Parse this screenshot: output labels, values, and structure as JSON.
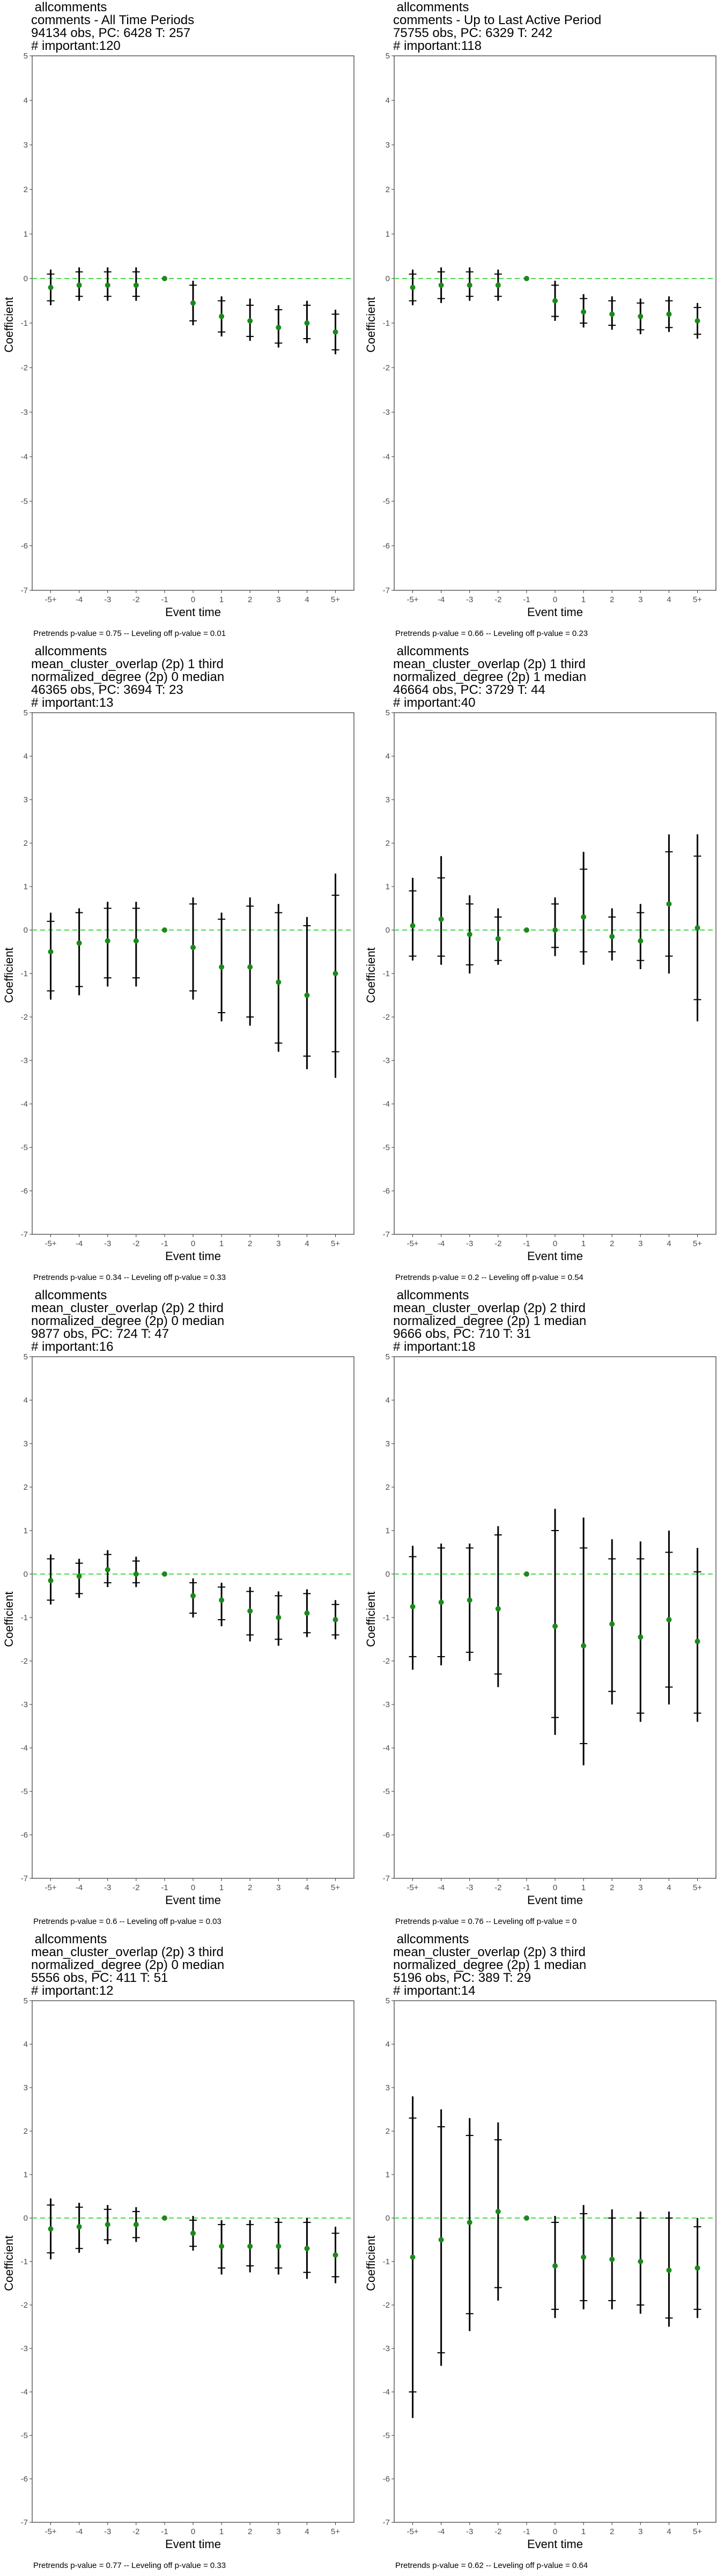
{
  "chart_data": [
    {
      "type": "errorbar",
      "title_lines": [
        "allcomments",
        "comments - All Time Periods",
        "94134 obs, PC: 6428 T: 257",
        "# important:120"
      ],
      "xlabel": "Event time",
      "ylabel": "Coefficient",
      "ylim": [
        -7,
        5
      ],
      "yticks": [
        5,
        4,
        3,
        2,
        1,
        0,
        -1,
        -2,
        -3,
        -4,
        -5,
        -6,
        -7
      ],
      "categories": [
        "-5+",
        "-4",
        "-3",
        "-2",
        "-1",
        "0",
        "1",
        "2",
        "3",
        "4",
        "5+"
      ],
      "estimates": [
        -0.2,
        -0.15,
        -0.15,
        -0.15,
        0,
        -0.55,
        -0.85,
        -0.95,
        -1.1,
        -1.0,
        -1.2
      ],
      "ci95": [
        [
          -0.6,
          0.2
        ],
        [
          -0.5,
          0.25
        ],
        [
          -0.5,
          0.25
        ],
        [
          -0.5,
          0.25
        ],
        [
          0,
          0
        ],
        [
          -1.05,
          -0.05
        ],
        [
          -1.3,
          -0.4
        ],
        [
          -1.4,
          -0.45
        ],
        [
          -1.55,
          -0.6
        ],
        [
          -1.45,
          -0.5
        ],
        [
          -1.7,
          -0.7
        ]
      ],
      "ci90": [
        [
          -0.5,
          0.1
        ],
        [
          -0.4,
          0.15
        ],
        [
          -0.4,
          0.15
        ],
        [
          -0.4,
          0.15
        ],
        [
          0,
          0
        ],
        [
          -0.95,
          -0.15
        ],
        [
          -1.2,
          -0.5
        ],
        [
          -1.3,
          -0.6
        ],
        [
          -1.45,
          -0.7
        ],
        [
          -1.35,
          -0.6
        ],
        [
          -1.6,
          -0.8
        ]
      ],
      "reference_line": 0,
      "footnote": "Pretrends p-value = 0.75 -- Leveling off p-value = 0.01"
    },
    {
      "type": "errorbar",
      "title_lines": [
        "allcomments",
        "comments - Up to Last Active Period",
        "75755 obs, PC: 6329 T: 242",
        "# important:118"
      ],
      "xlabel": "Event time",
      "ylabel": "Coefficient",
      "ylim": [
        -7,
        5
      ],
      "yticks": [
        5,
        4,
        3,
        2,
        1,
        0,
        -1,
        -2,
        -3,
        -4,
        -5,
        -6,
        -7
      ],
      "categories": [
        "-5+",
        "-4",
        "-3",
        "-2",
        "-1",
        "0",
        "1",
        "2",
        "3",
        "4",
        "5+"
      ],
      "estimates": [
        -0.2,
        -0.15,
        -0.15,
        -0.15,
        0,
        -0.5,
        -0.75,
        -0.8,
        -0.85,
        -0.8,
        -0.95
      ],
      "ci95": [
        [
          -0.6,
          0.2
        ],
        [
          -0.55,
          0.25
        ],
        [
          -0.5,
          0.25
        ],
        [
          -0.5,
          0.2
        ],
        [
          0,
          0
        ],
        [
          -0.95,
          -0.05
        ],
        [
          -1.1,
          -0.35
        ],
        [
          -1.15,
          -0.4
        ],
        [
          -1.25,
          -0.45
        ],
        [
          -1.2,
          -0.4
        ],
        [
          -1.35,
          -0.55
        ]
      ],
      "ci90": [
        [
          -0.5,
          0.1
        ],
        [
          -0.45,
          0.15
        ],
        [
          -0.4,
          0.15
        ],
        [
          -0.4,
          0.1
        ],
        [
          0,
          0
        ],
        [
          -0.85,
          -0.15
        ],
        [
          -1.0,
          -0.45
        ],
        [
          -1.05,
          -0.5
        ],
        [
          -1.15,
          -0.55
        ],
        [
          -1.1,
          -0.5
        ],
        [
          -1.25,
          -0.65
        ]
      ],
      "reference_line": 0,
      "footnote": "Pretrends p-value = 0.66 -- Leveling off p-value = 0.23"
    },
    {
      "type": "errorbar",
      "title_lines": [
        "allcomments",
        "mean_cluster_overlap (2p) 1 third",
        "normalized_degree (2p) 0 median",
        "46365 obs, PC: 3694 T: 23",
        "# important:13"
      ],
      "xlabel": "Event time",
      "ylabel": "Coefficient",
      "ylim": [
        -7,
        5
      ],
      "yticks": [
        5,
        4,
        3,
        2,
        1,
        0,
        -1,
        -2,
        -3,
        -4,
        -5,
        -6,
        -7
      ],
      "categories": [
        "-5+",
        "-4",
        "-3",
        "-2",
        "-1",
        "0",
        "1",
        "2",
        "3",
        "4",
        "5+"
      ],
      "estimates": [
        -0.5,
        -0.3,
        -0.25,
        -0.25,
        0,
        -0.4,
        -0.85,
        -0.85,
        -1.2,
        -1.5,
        -1.0
      ],
      "ci95": [
        [
          -1.6,
          0.4
        ],
        [
          -1.5,
          0.5
        ],
        [
          -1.3,
          0.65
        ],
        [
          -1.3,
          0.65
        ],
        [
          0,
          0
        ],
        [
          -1.6,
          0.75
        ],
        [
          -2.1,
          0.4
        ],
        [
          -2.2,
          0.75
        ],
        [
          -2.8,
          0.6
        ],
        [
          -3.2,
          0.3
        ],
        [
          -3.4,
          1.3
        ]
      ],
      "ci90": [
        [
          -1.4,
          0.2
        ],
        [
          -1.3,
          0.4
        ],
        [
          -1.1,
          0.5
        ],
        [
          -1.1,
          0.5
        ],
        [
          0,
          0
        ],
        [
          -1.4,
          0.6
        ],
        [
          -1.9,
          0.25
        ],
        [
          -2.0,
          0.55
        ],
        [
          -2.6,
          0.4
        ],
        [
          -2.9,
          0.1
        ],
        [
          -2.8,
          0.8
        ]
      ],
      "reference_line": 0,
      "footnote": "Pretrends p-value = 0.34 -- Leveling off p-value = 0.33"
    },
    {
      "type": "errorbar",
      "title_lines": [
        "allcomments",
        "mean_cluster_overlap (2p) 1 third",
        "normalized_degree (2p) 1 median",
        "46664 obs, PC: 3729 T: 44",
        "# important:40"
      ],
      "xlabel": "Event time",
      "ylabel": "Coefficient",
      "ylim": [
        -7,
        5
      ],
      "yticks": [
        5,
        4,
        3,
        2,
        1,
        0,
        -1,
        -2,
        -3,
        -4,
        -5,
        -6,
        -7
      ],
      "categories": [
        "-5+",
        "-4",
        "-3",
        "-2",
        "-1",
        "0",
        "1",
        "2",
        "3",
        "4",
        "5+"
      ],
      "estimates": [
        0.1,
        0.25,
        -0.1,
        -0.2,
        0,
        0.0,
        0.3,
        -0.15,
        -0.25,
        0.6,
        0.05
      ],
      "ci95": [
        [
          -0.7,
          1.2
        ],
        [
          -0.8,
          1.7
        ],
        [
          -1.0,
          0.8
        ],
        [
          -0.8,
          0.5
        ],
        [
          0,
          0
        ],
        [
          -0.6,
          0.75
        ],
        [
          -0.8,
          1.8
        ],
        [
          -0.7,
          0.5
        ],
        [
          -0.9,
          0.6
        ],
        [
          -1.0,
          2.2
        ],
        [
          -2.1,
          2.2
        ]
      ],
      "ci90": [
        [
          -0.6,
          0.9
        ],
        [
          -0.6,
          1.2
        ],
        [
          -0.8,
          0.6
        ],
        [
          -0.7,
          0.3
        ],
        [
          0,
          0
        ],
        [
          -0.4,
          0.6
        ],
        [
          -0.5,
          1.4
        ],
        [
          -0.5,
          0.3
        ],
        [
          -0.7,
          0.4
        ],
        [
          -0.6,
          1.8
        ],
        [
          -1.6,
          1.7
        ]
      ],
      "reference_line": 0,
      "footnote": "Pretrends p-value = 0.2 -- Leveling off p-value = 0.54"
    },
    {
      "type": "errorbar",
      "title_lines": [
        "allcomments",
        "mean_cluster_overlap (2p) 2 third",
        "normalized_degree (2p) 0 median",
        "9877 obs, PC: 724 T: 47",
        "# important:16"
      ],
      "xlabel": "Event time",
      "ylabel": "Coefficient",
      "ylim": [
        -7,
        5
      ],
      "yticks": [
        5,
        4,
        3,
        2,
        1,
        0,
        -1,
        -2,
        -3,
        -4,
        -5,
        -6,
        -7
      ],
      "categories": [
        "-5+",
        "-4",
        "-3",
        "-2",
        "-1",
        "0",
        "1",
        "2",
        "3",
        "4",
        "5+"
      ],
      "estimates": [
        -0.15,
        -0.05,
        0.1,
        0.0,
        0,
        -0.5,
        -0.6,
        -0.85,
        -1.0,
        -0.9,
        -1.05
      ],
      "ci95": [
        [
          -0.7,
          0.45
        ],
        [
          -0.55,
          0.35
        ],
        [
          -0.3,
          0.55
        ],
        [
          -0.3,
          0.4
        ],
        [
          0,
          0
        ],
        [
          -1.0,
          -0.1
        ],
        [
          -1.2,
          -0.2
        ],
        [
          -1.55,
          -0.3
        ],
        [
          -1.65,
          -0.4
        ],
        [
          -1.45,
          -0.35
        ],
        [
          -1.5,
          -0.6
        ]
      ],
      "ci90": [
        [
          -0.6,
          0.35
        ],
        [
          -0.45,
          0.25
        ],
        [
          -0.2,
          0.45
        ],
        [
          -0.2,
          0.3
        ],
        [
          0,
          0
        ],
        [
          -0.9,
          -0.2
        ],
        [
          -1.05,
          -0.3
        ],
        [
          -1.4,
          -0.4
        ],
        [
          -1.5,
          -0.5
        ],
        [
          -1.35,
          -0.45
        ],
        [
          -1.4,
          -0.7
        ]
      ],
      "reference_line": 0,
      "footnote": "Pretrends p-value = 0.6 -- Leveling off p-value = 0.03"
    },
    {
      "type": "errorbar",
      "title_lines": [
        "allcomments",
        "mean_cluster_overlap (2p) 2 third",
        "normalized_degree (2p) 1 median",
        "9666 obs, PC: 710 T: 31",
        "# important:18"
      ],
      "xlabel": "Event time",
      "ylabel": "Coefficient",
      "ylim": [
        -7,
        5
      ],
      "yticks": [
        5,
        4,
        3,
        2,
        1,
        0,
        -1,
        -2,
        -3,
        -4,
        -5,
        -6,
        -7
      ],
      "categories": [
        "-5+",
        "-4",
        "-3",
        "-2",
        "-1",
        "0",
        "1",
        "2",
        "3",
        "4",
        "5+"
      ],
      "estimates": [
        -0.75,
        -0.65,
        -0.6,
        -0.8,
        0,
        -1.2,
        -1.65,
        -1.15,
        -1.45,
        -1.05,
        -1.55
      ],
      "ci95": [
        [
          -2.2,
          0.65
        ],
        [
          -2.1,
          0.7
        ],
        [
          -2.0,
          0.7
        ],
        [
          -2.6,
          1.1
        ],
        [
          0,
          0
        ],
        [
          -3.7,
          1.5
        ],
        [
          -4.4,
          1.3
        ],
        [
          -3.0,
          0.8
        ],
        [
          -3.4,
          0.75
        ],
        [
          -3.0,
          1.0
        ],
        [
          -3.4,
          0.6
        ]
      ],
      "ci90": [
        [
          -1.9,
          0.4
        ],
        [
          -1.9,
          0.6
        ],
        [
          -1.8,
          0.6
        ],
        [
          -2.3,
          0.9
        ],
        [
          0,
          0
        ],
        [
          -3.3,
          1.0
        ],
        [
          -3.9,
          0.6
        ],
        [
          -2.7,
          0.35
        ],
        [
          -3.2,
          0.35
        ],
        [
          -2.6,
          0.5
        ],
        [
          -3.2,
          0.05
        ]
      ],
      "reference_line": 0,
      "footnote": "Pretrends p-value = 0.76 -- Leveling off p-value = 0"
    },
    {
      "type": "errorbar",
      "title_lines": [
        "allcomments",
        "mean_cluster_overlap (2p) 3 third",
        "normalized_degree (2p) 0 median",
        "5556 obs, PC: 411 T: 51",
        "# important:12"
      ],
      "xlabel": "Event time",
      "ylabel": "Coefficient",
      "ylim": [
        -7,
        5
      ],
      "yticks": [
        5,
        4,
        3,
        2,
        1,
        0,
        -1,
        -2,
        -3,
        -4,
        -5,
        -6,
        -7
      ],
      "categories": [
        "-5+",
        "-4",
        "-3",
        "-2",
        "-1",
        "0",
        "1",
        "2",
        "3",
        "4",
        "5+"
      ],
      "estimates": [
        -0.25,
        -0.2,
        -0.15,
        -0.15,
        0,
        -0.35,
        -0.65,
        -0.65,
        -0.65,
        -0.7,
        -0.85
      ],
      "ci95": [
        [
          -0.95,
          0.45
        ],
        [
          -0.8,
          0.35
        ],
        [
          -0.6,
          0.3
        ],
        [
          -0.55,
          0.25
        ],
        [
          0,
          0
        ],
        [
          -0.75,
          0.05
        ],
        [
          -1.3,
          -0.05
        ],
        [
          -1.25,
          -0.05
        ],
        [
          -1.3,
          0.0
        ],
        [
          -1.4,
          0.0
        ],
        [
          -1.5,
          -0.2
        ]
      ],
      "ci90": [
        [
          -0.8,
          0.3
        ],
        [
          -0.7,
          0.25
        ],
        [
          -0.5,
          0.2
        ],
        [
          -0.45,
          0.15
        ],
        [
          0,
          0
        ],
        [
          -0.65,
          -0.05
        ],
        [
          -1.15,
          -0.15
        ],
        [
          -1.1,
          -0.15
        ],
        [
          -1.15,
          -0.1
        ],
        [
          -1.25,
          -0.1
        ],
        [
          -1.35,
          -0.35
        ]
      ],
      "reference_line": 0,
      "footnote": "Pretrends p-value = 0.77 -- Leveling off p-value = 0.33"
    },
    {
      "type": "errorbar",
      "title_lines": [
        "allcomments",
        "mean_cluster_overlap (2p) 3 third",
        "normalized_degree (2p) 1 median",
        "5196 obs, PC: 389 T: 29",
        "# important:14"
      ],
      "xlabel": "Event time",
      "ylabel": "Coefficient",
      "ylim": [
        -7,
        5
      ],
      "yticks": [
        5,
        4,
        3,
        2,
        1,
        0,
        -1,
        -2,
        -3,
        -4,
        -5,
        -6,
        -7
      ],
      "categories": [
        "-5+",
        "-4",
        "-3",
        "-2",
        "-1",
        "0",
        "1",
        "2",
        "3",
        "4",
        "5+"
      ],
      "estimates": [
        -0.9,
        -0.5,
        -0.1,
        0.15,
        0,
        -1.1,
        -0.9,
        -0.95,
        -1.0,
        -1.2,
        -1.15
      ],
      "ci95": [
        [
          -4.6,
          2.8
        ],
        [
          -3.4,
          2.5
        ],
        [
          -2.6,
          2.3
        ],
        [
          -1.9,
          2.2
        ],
        [
          0,
          0
        ],
        [
          -2.3,
          0.05
        ],
        [
          -2.1,
          0.3
        ],
        [
          -2.1,
          0.2
        ],
        [
          -2.2,
          0.15
        ],
        [
          -2.5,
          0.15
        ],
        [
          -2.3,
          0.0
        ]
      ],
      "ci90": [
        [
          -4.0,
          2.3
        ],
        [
          -3.1,
          2.1
        ],
        [
          -2.2,
          1.9
        ],
        [
          -1.6,
          1.8
        ],
        [
          0,
          0
        ],
        [
          -2.1,
          -0.1
        ],
        [
          -1.9,
          0.1
        ],
        [
          -1.9,
          0.0
        ],
        [
          -2.0,
          0.0
        ],
        [
          -2.3,
          0.0
        ],
        [
          -2.1,
          -0.2
        ]
      ],
      "reference_line": 0,
      "footnote": "Pretrends p-value = 0.62 -- Leveling off p-value = 0.64"
    }
  ],
  "colors": {
    "estimate_point": "#1a8a1a",
    "reference_line": "#4cd94c",
    "errorbar": "#000000",
    "axis_text": "#4d4d4d",
    "panel_border": "#333333"
  }
}
